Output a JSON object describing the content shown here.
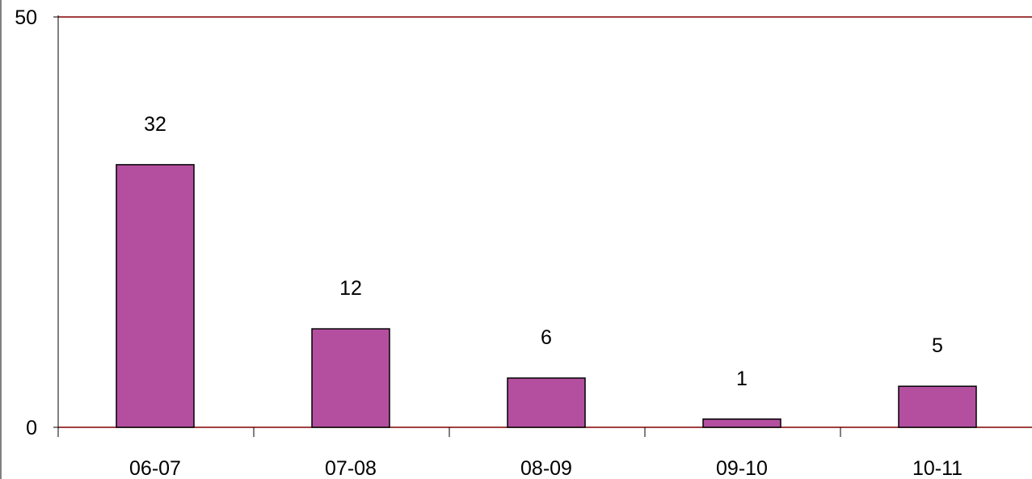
{
  "chart_data": {
    "type": "bar",
    "categories": [
      "06-07",
      "07-08",
      "08-09",
      "09-10",
      "10-11"
    ],
    "values": [
      32,
      12,
      6,
      1,
      5
    ],
    "data_labels": [
      "32",
      "12",
      "6",
      "1",
      "5"
    ],
    "ylim": [
      0,
      50
    ],
    "y_tick_labels": [
      "0",
      "50"
    ],
    "grid": false,
    "legend": "none",
    "colors": {
      "bar_fill": "#b44fa0",
      "bar_stroke": "#000000",
      "plot_border": "#800000",
      "axis": "#000000"
    }
  }
}
